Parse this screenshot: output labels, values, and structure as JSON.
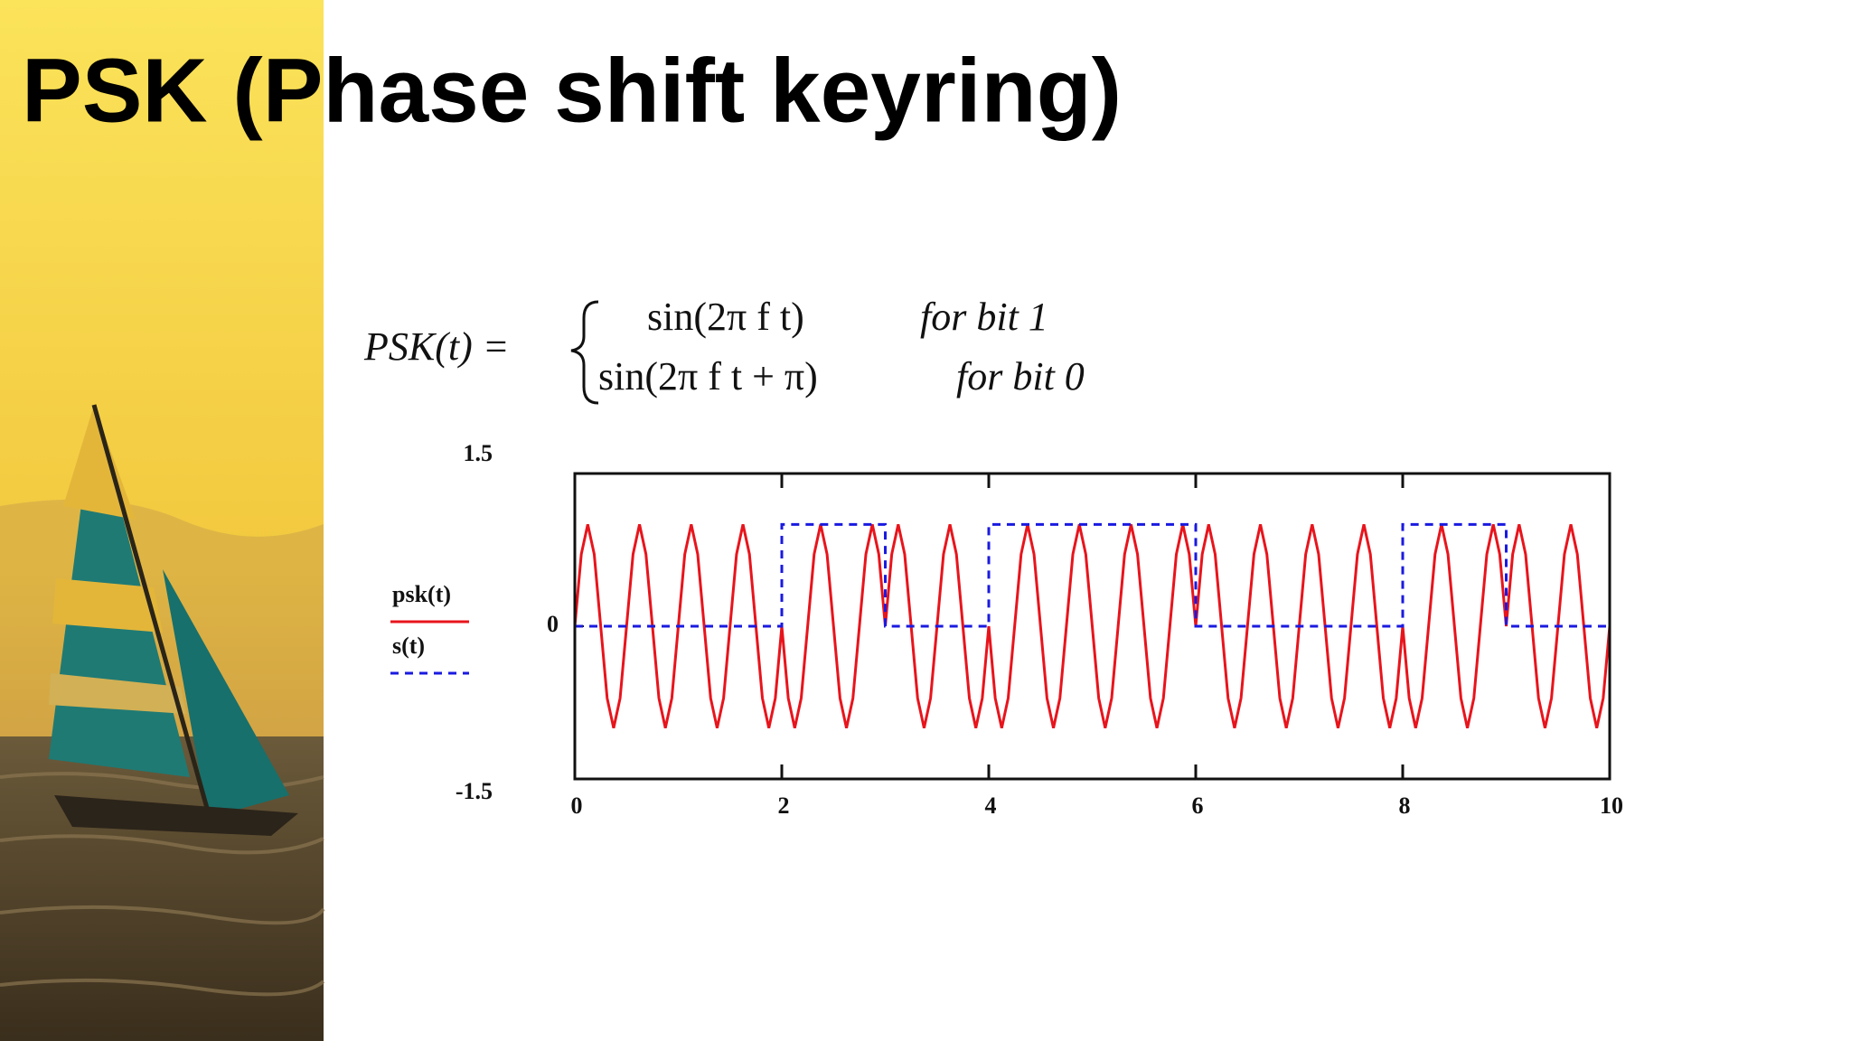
{
  "chart_data": {
    "type": "line",
    "title": "PSK (Phase shift keyring)",
    "formula": {
      "lhs": "PSK(t) =",
      "case1": "sin(2π f t)",
      "cond1": "for bit 1",
      "case2": "sin(2π f t + π)",
      "cond2": "for bit 0"
    },
    "xlim": [
      0,
      10
    ],
    "xticks": [
      0,
      2,
      4,
      6,
      8,
      10
    ],
    "ylim": [
      -1.5,
      1.5
    ],
    "yticks": [
      1.5,
      0,
      -1.5
    ],
    "grid": false,
    "legend": "left",
    "series": [
      {
        "name": "psk(t)",
        "color": "#e8141c",
        "dashed": false,
        "x": [
          0,
          0.0625,
          0.125,
          0.1875,
          0.25,
          0.3125,
          0.375,
          0.4375,
          0.5,
          0.5625,
          0.625,
          0.6875,
          0.75,
          0.8125,
          0.875,
          0.9375,
          1,
          1.0625,
          1.125,
          1.1875,
          1.25,
          1.3125,
          1.375,
          1.4375,
          1.5,
          1.5625,
          1.625,
          1.6875,
          1.75,
          1.8125,
          1.875,
          1.9375,
          2,
          2.0625,
          2.125,
          2.1875,
          2.25,
          2.3125,
          2.375,
          2.4375,
          2.5,
          2.5625,
          2.625,
          2.6875,
          2.75,
          2.8125,
          2.875,
          2.9375,
          3,
          3.0625,
          3.125,
          3.1875,
          3.25,
          3.3125,
          3.375,
          3.4375,
          3.5,
          3.5625,
          3.625,
          3.6875,
          3.75,
          3.8125,
          3.875,
          3.9375,
          4,
          4.0625,
          4.125,
          4.1875,
          4.25,
          4.3125,
          4.375,
          4.4375,
          4.5,
          4.5625,
          4.625,
          4.6875,
          4.75,
          4.8125,
          4.875,
          4.9375,
          5,
          5.0625,
          5.125,
          5.1875,
          5.25,
          5.3125,
          5.375,
          5.4375,
          5.5,
          5.5625,
          5.625,
          5.6875,
          5.75,
          5.8125,
          5.875,
          5.9375,
          6,
          6.0625,
          6.125,
          6.1875,
          6.25,
          6.3125,
          6.375,
          6.4375,
          6.5,
          6.5625,
          6.625,
          6.6875,
          6.75,
          6.8125,
          6.875,
          6.9375,
          7,
          7.0625,
          7.125,
          7.1875,
          7.25,
          7.3125,
          7.375,
          7.4375,
          7.5,
          7.5625,
          7.625,
          7.6875,
          7.75,
          7.8125,
          7.875,
          7.9375,
          8,
          8.0625,
          8.125,
          8.1875,
          8.25,
          8.3125,
          8.375,
          8.4375,
          8.5,
          8.5625,
          8.625,
          8.6875,
          8.75,
          8.8125,
          8.875,
          8.9375,
          9,
          9.0625,
          9.125,
          9.1875,
          9.25,
          9.3125,
          9.375,
          9.4375,
          9.5,
          9.5625,
          9.625,
          9.6875,
          9.75,
          9.8125,
          9.875,
          9.9375,
          10
        ],
        "values": [
          0,
          0.707,
          1,
          0.707,
          0,
          -0.707,
          -1,
          -0.707,
          0,
          0.707,
          1,
          0.707,
          0,
          -0.707,
          -1,
          -0.707,
          0,
          0.707,
          1,
          0.707,
          0,
          -0.707,
          -1,
          -0.707,
          0,
          0.707,
          1,
          0.707,
          0,
          -0.707,
          -1,
          -0.707,
          0,
          -0.707,
          -1,
          -0.707,
          0,
          0.707,
          1,
          0.707,
          0,
          -0.707,
          -1,
          -0.707,
          0,
          0.707,
          1,
          0.707,
          0,
          0.707,
          1,
          0.707,
          0,
          -0.707,
          -1,
          -0.707,
          0,
          0.707,
          1,
          0.707,
          0,
          -0.707,
          -1,
          -0.707,
          0,
          -0.707,
          -1,
          -0.707,
          0,
          0.707,
          1,
          0.707,
          0,
          -0.707,
          -1,
          -0.707,
          0,
          0.707,
          1,
          0.707,
          0,
          -0.707,
          -1,
          -0.707,
          0,
          0.707,
          1,
          0.707,
          0,
          -0.707,
          -1,
          -0.707,
          0,
          0.707,
          1,
          0.707,
          0,
          0.707,
          1,
          0.707,
          0,
          -0.707,
          -1,
          -0.707,
          0,
          0.707,
          1,
          0.707,
          0,
          -0.707,
          -1,
          -0.707,
          0,
          0.707,
          1,
          0.707,
          0,
          -0.707,
          -1,
          -0.707,
          0,
          0.707,
          1,
          0.707,
          0,
          -0.707,
          -1,
          -0.707,
          0,
          -0.707,
          -1,
          -0.707,
          0,
          0.707,
          1,
          0.707,
          0,
          -0.707,
          -1,
          -0.707,
          0,
          0.707,
          1,
          0.707,
          0,
          0.707,
          1,
          0.707,
          0,
          -0.707,
          -1,
          -0.707,
          0,
          0.707,
          1,
          0.707,
          0,
          -0.707,
          -1,
          -0.707,
          0
        ]
      },
      {
        "name": "s(t)",
        "color": "#1a1ae0",
        "dashed": true,
        "x": [
          0,
          2,
          2,
          3,
          3,
          4,
          4,
          6,
          6,
          8,
          8,
          9,
          9,
          10
        ],
        "values": [
          0,
          0,
          1,
          1,
          0,
          0,
          1,
          1,
          0,
          0,
          1,
          1,
          0,
          0
        ]
      }
    ]
  }
}
